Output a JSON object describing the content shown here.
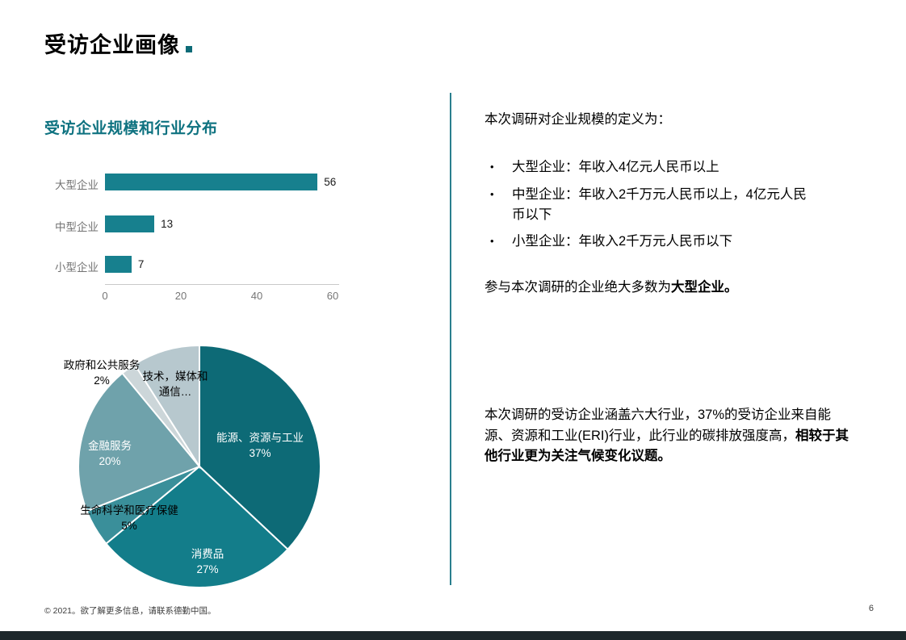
{
  "page": {
    "title": "受访企业画像",
    "footer": "© 2021。欲了解更多信息，请联系德勤中国。",
    "page_number": "6"
  },
  "left": {
    "section_title": "受访企业规模和行业分布"
  },
  "right": {
    "intro": "本次调研对企业规模的定义为：",
    "bullet_char": "•",
    "bullets": [
      "大型企业：年收入4亿元人民币以上",
      "中型企业：年收入2千万元人民币以上，4亿元人民币以下",
      "小型企业：年收入2千万元人民币以下"
    ],
    "para1": {
      "normal": "参与本次调研的企业绝大多数为",
      "bold": "大型企业。"
    },
    "para2": {
      "normal": "本次调研的受访企业涵盖六大行业，37%的受访企业来自能源、资源和工业(ERI)行业，此行业的碳排放强度高，",
      "bold": "相较于其他行业更为关注气候变化议题。"
    }
  },
  "theme": {
    "accent_teal": "#17808e",
    "heading_teal": "#0e7280",
    "divider_teal": "#2a7f8e",
    "title_dot": "#0d6b77",
    "footer_bar": "#1d272b"
  },
  "chart_data": [
    {
      "type": "bar",
      "orientation": "horizontal",
      "title": "",
      "categories": [
        "大型企业",
        "中型企业",
        "小型企业"
      ],
      "values": [
        56,
        13,
        7
      ],
      "xlim": [
        0,
        60
      ],
      "x_ticks": [
        0,
        20,
        40,
        60
      ],
      "bar_color": "#17808e",
      "grid": false,
      "legend": "none",
      "value_labels": true
    },
    {
      "type": "pie",
      "start_angle_deg": 0,
      "direction": "clockwise",
      "slices": [
        {
          "label": "能源、资源与工业",
          "value": 37,
          "pct_label": "37%",
          "color": "#0d6a76",
          "text_color": "#ffffff"
        },
        {
          "label": "消费品",
          "value": 27,
          "pct_label": "27%",
          "color": "#137d8a",
          "text_color": "#ffffff"
        },
        {
          "label": "生命科学和医疗保健",
          "value": 5,
          "pct_label": "5%",
          "color": "#3a8f9a",
          "text_color": "#000000"
        },
        {
          "label": "金融服务",
          "value": 20,
          "pct_label": "20%",
          "color": "#6fa2ab",
          "text_color": "#ffffff"
        },
        {
          "label": "政府和公共服务",
          "value": 2,
          "pct_label": "2%",
          "color": "#ccd6d9",
          "text_color": "#000000"
        },
        {
          "label": "技术，媒体和通信…",
          "value": 9,
          "pct_label": "",
          "color": "#b7c8ce",
          "text_color": "#000000"
        }
      ]
    }
  ]
}
